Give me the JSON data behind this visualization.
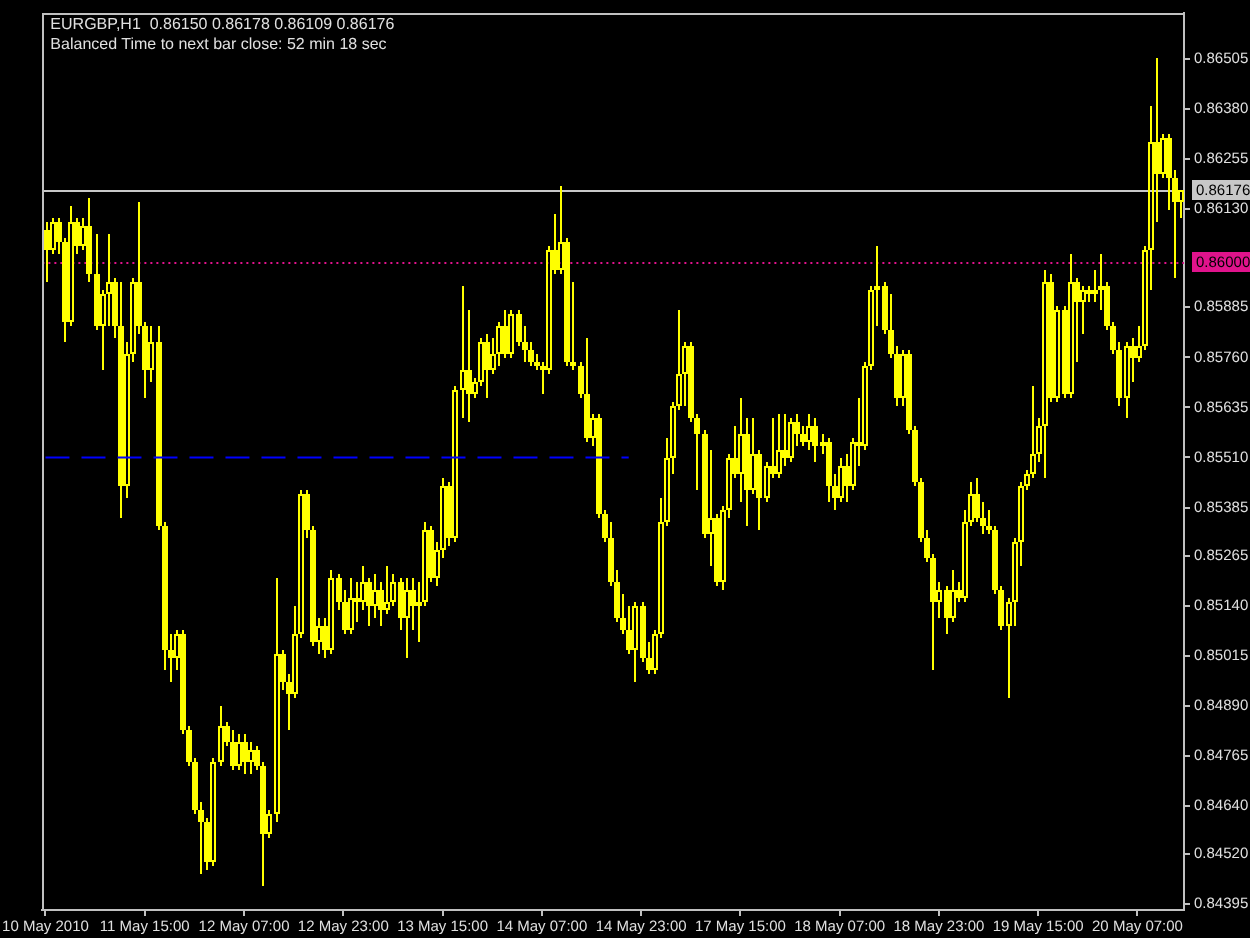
{
  "chart_data": {
    "type": "candlestick",
    "title": "EURGBP,H1  0.86150 0.86178 0.86109 0.86176",
    "subtitle": "Balanced Time to next bar close: 52 min 18 sec",
    "color": "#ffff00",
    "categories": [
      "10 May 2010",
      null,
      null,
      null,
      null,
      null,
      null,
      null,
      null,
      null,
      null,
      null,
      null,
      null,
      null,
      null,
      "11 May 15:00",
      null,
      null,
      null,
      null,
      null,
      null,
      null,
      null,
      null,
      null,
      null,
      null,
      null,
      null,
      null,
      "12 May 07:00",
      null,
      null,
      null,
      null,
      null,
      null,
      null,
      null,
      null,
      null,
      null,
      null,
      null,
      null,
      null,
      "12 May 23:00",
      null,
      null,
      null,
      null,
      null,
      null,
      null,
      null,
      null,
      null,
      null,
      null,
      null,
      null,
      null,
      "13 May 15:00",
      null,
      null,
      null,
      null,
      null,
      null,
      null,
      null,
      null,
      null,
      null,
      null,
      null,
      null,
      null,
      "14 May 07:00",
      null,
      null,
      null,
      null,
      null,
      null,
      null,
      null,
      null,
      null,
      null,
      null,
      null,
      null,
      null,
      "14 May 23:00",
      null,
      null,
      null,
      null,
      null,
      null,
      null,
      null,
      null,
      null,
      null,
      null,
      null,
      null,
      null,
      "17 May 15:00",
      null,
      null,
      null,
      null,
      null,
      null,
      null,
      null,
      null,
      null,
      null,
      null,
      null,
      null,
      null,
      "18 May 07:00",
      null,
      null,
      null,
      null,
      null,
      null,
      null,
      null,
      null,
      null,
      null,
      null,
      null,
      null,
      null,
      "18 May 23:00",
      null,
      null,
      null,
      null,
      null,
      null,
      null,
      null,
      null,
      null,
      null,
      null,
      null,
      null,
      null,
      "19 May 15:00",
      null,
      null,
      null,
      null,
      null,
      null,
      null,
      null,
      null,
      null,
      null,
      null,
      null,
      null,
      null,
      "20 May 07:00",
      null,
      null,
      null,
      null,
      null,
      null,
      null
    ],
    "ohlc": [
      [
        0.8608,
        0.861,
        0.8595,
        0.8603
      ],
      [
        0.8603,
        0.8611,
        0.8602,
        0.861
      ],
      [
        0.861,
        0.8611,
        0.8602,
        0.8605
      ],
      [
        0.8605,
        0.8606,
        0.858,
        0.8585
      ],
      [
        0.8585,
        0.8614,
        0.8584,
        0.861
      ],
      [
        0.861,
        0.8611,
        0.8602,
        0.8604
      ],
      [
        0.8604,
        0.8611,
        0.8603,
        0.8609
      ],
      [
        0.8609,
        0.8616,
        0.8595,
        0.8597
      ],
      [
        0.8597,
        0.8607,
        0.8583,
        0.8584
      ],
      [
        0.8584,
        0.8593,
        0.8573,
        0.8592
      ],
      [
        0.8592,
        0.8607,
        0.8584,
        0.8595
      ],
      [
        0.8595,
        0.8596,
        0.8581,
        0.8584
      ],
      [
        0.8584,
        0.8595,
        0.8536,
        0.8544
      ],
      [
        0.8544,
        0.858,
        0.8541,
        0.8577
      ],
      [
        0.8577,
        0.8596,
        0.8575,
        0.8595
      ],
      [
        0.8595,
        0.8615,
        0.8582,
        0.8584
      ],
      [
        0.8584,
        0.8585,
        0.8566,
        0.8573
      ],
      [
        0.8573,
        0.8584,
        0.857,
        0.858
      ],
      [
        0.858,
        0.8584,
        0.8533,
        0.8534
      ],
      [
        0.8534,
        0.8535,
        0.8498,
        0.8503
      ],
      [
        0.8503,
        0.8507,
        0.8495,
        0.8501
      ],
      [
        0.8501,
        0.8508,
        0.8498,
        0.8507
      ],
      [
        0.8507,
        0.8508,
        0.8482,
        0.8483
      ],
      [
        0.8483,
        0.8484,
        0.8474,
        0.8475
      ],
      [
        0.8475,
        0.8476,
        0.8462,
        0.8463
      ],
      [
        0.8463,
        0.8465,
        0.8447,
        0.846
      ],
      [
        0.846,
        0.8461,
        0.8448,
        0.845
      ],
      [
        0.845,
        0.8476,
        0.8449,
        0.8475
      ],
      [
        0.8475,
        0.8489,
        0.8474,
        0.8484
      ],
      [
        0.8484,
        0.8485,
        0.8479,
        0.848
      ],
      [
        0.848,
        0.8483,
        0.8473,
        0.8474
      ],
      [
        0.8474,
        0.8482,
        0.8473,
        0.848
      ],
      [
        0.848,
        0.8482,
        0.8472,
        0.8475
      ],
      [
        0.8475,
        0.848,
        0.8472,
        0.8478
      ],
      [
        0.8478,
        0.8479,
        0.8473,
        0.8474
      ],
      [
        0.8474,
        0.8475,
        0.8444,
        0.8457
      ],
      [
        0.8457,
        0.8463,
        0.8456,
        0.8462
      ],
      [
        0.8462,
        0.8521,
        0.846,
        0.8502
      ],
      [
        0.8502,
        0.8503,
        0.8493,
        0.8495
      ],
      [
        0.8495,
        0.8497,
        0.8483,
        0.8492
      ],
      [
        0.8492,
        0.8514,
        0.8491,
        0.8507
      ],
      [
        0.8507,
        0.8543,
        0.8506,
        0.8542
      ],
      [
        0.8542,
        0.8543,
        0.8531,
        0.8533
      ],
      [
        0.8533,
        0.8534,
        0.8504,
        0.8505
      ],
      [
        0.8505,
        0.8511,
        0.8502,
        0.8509
      ],
      [
        0.8509,
        0.8511,
        0.8501,
        0.8503
      ],
      [
        0.8503,
        0.8523,
        0.8502,
        0.8521
      ],
      [
        0.8521,
        0.8522,
        0.8513,
        0.8515
      ],
      [
        0.8515,
        0.8518,
        0.8507,
        0.8508
      ],
      [
        0.8508,
        0.8521,
        0.8507,
        0.8516
      ],
      [
        0.8516,
        0.852,
        0.851,
        0.8515
      ],
      [
        0.8515,
        0.8524,
        0.8513,
        0.852
      ],
      [
        0.852,
        0.8521,
        0.8509,
        0.8514
      ],
      [
        0.8514,
        0.8522,
        0.8511,
        0.8518
      ],
      [
        0.8518,
        0.852,
        0.8509,
        0.8513
      ],
      [
        0.8513,
        0.8524,
        0.8512,
        0.8515
      ],
      [
        0.8515,
        0.8522,
        0.8514,
        0.852
      ],
      [
        0.852,
        0.8521,
        0.8508,
        0.8511
      ],
      [
        0.8511,
        0.8521,
        0.8501,
        0.8518
      ],
      [
        0.8518,
        0.8521,
        0.8508,
        0.8514
      ],
      [
        0.8514,
        0.852,
        0.8505,
        0.8515
      ],
      [
        0.8515,
        0.8535,
        0.8514,
        0.8533
      ],
      [
        0.8533,
        0.8534,
        0.852,
        0.8521
      ],
      [
        0.8521,
        0.853,
        0.8519,
        0.8528
      ],
      [
        0.8528,
        0.8546,
        0.8526,
        0.8544
      ],
      [
        0.8544,
        0.8545,
        0.8529,
        0.8531
      ],
      [
        0.8531,
        0.8569,
        0.853,
        0.8568
      ],
      [
        0.8568,
        0.8594,
        0.8561,
        0.8573
      ],
      [
        0.8573,
        0.8588,
        0.856,
        0.8567
      ],
      [
        0.8567,
        0.8571,
        0.8566,
        0.857
      ],
      [
        0.857,
        0.8581,
        0.8569,
        0.858
      ],
      [
        0.858,
        0.8582,
        0.8566,
        0.8573
      ],
      [
        0.8573,
        0.8581,
        0.8572,
        0.8577
      ],
      [
        0.8577,
        0.8585,
        0.8574,
        0.8584
      ],
      [
        0.8584,
        0.8588,
        0.8576,
        0.8577
      ],
      [
        0.8577,
        0.8588,
        0.8576,
        0.8587
      ],
      [
        0.8587,
        0.8588,
        0.8579,
        0.858
      ],
      [
        0.858,
        0.8584,
        0.8575,
        0.8578
      ],
      [
        0.8578,
        0.858,
        0.8574,
        0.8575
      ],
      [
        0.8575,
        0.8577,
        0.8573,
        0.8574
      ],
      [
        0.8574,
        0.8575,
        0.8567,
        0.8573
      ],
      [
        0.8573,
        0.8604,
        0.8572,
        0.8603
      ],
      [
        0.8603,
        0.8612,
        0.8597,
        0.8598
      ],
      [
        0.8598,
        0.8619,
        0.8597,
        0.8605
      ],
      [
        0.8605,
        0.8606,
        0.8574,
        0.8575
      ],
      [
        0.8575,
        0.8595,
        0.8573,
        0.8574
      ],
      [
        0.8574,
        0.8575,
        0.8566,
        0.8567
      ],
      [
        0.8567,
        0.8581,
        0.8555,
        0.8556
      ],
      [
        0.8556,
        0.8562,
        0.8554,
        0.8561
      ],
      [
        0.8561,
        0.8562,
        0.8536,
        0.8537
      ],
      [
        0.8537,
        0.8538,
        0.853,
        0.8531
      ],
      [
        0.8531,
        0.8535,
        0.8519,
        0.852
      ],
      [
        0.852,
        0.8523,
        0.851,
        0.8511
      ],
      [
        0.8511,
        0.8517,
        0.8507,
        0.8508
      ],
      [
        0.8508,
        0.8514,
        0.8502,
        0.8503
      ],
      [
        0.8503,
        0.8515,
        0.8495,
        0.8514
      ],
      [
        0.8514,
        0.8515,
        0.85,
        0.8501
      ],
      [
        0.8501,
        0.8505,
        0.8497,
        0.8498
      ],
      [
        0.8498,
        0.8508,
        0.8497,
        0.8507
      ],
      [
        0.8507,
        0.8541,
        0.8506,
        0.8535
      ],
      [
        0.8535,
        0.8556,
        0.8534,
        0.8551
      ],
      [
        0.8551,
        0.8565,
        0.8547,
        0.8564
      ],
      [
        0.8564,
        0.8588,
        0.8563,
        0.8572
      ],
      [
        0.8572,
        0.858,
        0.8564,
        0.8579
      ],
      [
        0.8579,
        0.858,
        0.856,
        0.8561
      ],
      [
        0.8561,
        0.8562,
        0.8543,
        0.8557
      ],
      [
        0.8557,
        0.8558,
        0.8531,
        0.8532
      ],
      [
        0.8532,
        0.8553,
        0.8524,
        0.8536
      ],
      [
        0.8536,
        0.8537,
        0.8519,
        0.852
      ],
      [
        0.852,
        0.8539,
        0.8518,
        0.8538
      ],
      [
        0.8538,
        0.8552,
        0.8536,
        0.8551
      ],
      [
        0.8551,
        0.8559,
        0.8546,
        0.8547
      ],
      [
        0.8547,
        0.8566,
        0.854,
        0.8557
      ],
      [
        0.8557,
        0.8561,
        0.8534,
        0.8543
      ],
      [
        0.8543,
        0.8561,
        0.8542,
        0.8552
      ],
      [
        0.8552,
        0.8553,
        0.8533,
        0.8541
      ],
      [
        0.8541,
        0.855,
        0.854,
        0.8549
      ],
      [
        0.8549,
        0.8561,
        0.8546,
        0.8547
      ],
      [
        0.8547,
        0.8562,
        0.8546,
        0.8553
      ],
      [
        0.8553,
        0.8562,
        0.8549,
        0.8551
      ],
      [
        0.8551,
        0.8561,
        0.855,
        0.856
      ],
      [
        0.856,
        0.8562,
        0.8554,
        0.8557
      ],
      [
        0.8557,
        0.8559,
        0.8554,
        0.8555
      ],
      [
        0.8555,
        0.8562,
        0.8553,
        0.8559
      ],
      [
        0.8559,
        0.8561,
        0.855,
        0.8554
      ],
      [
        0.8554,
        0.8557,
        0.8552,
        0.8555
      ],
      [
        0.8555,
        0.8556,
        0.854,
        0.8544
      ],
      [
        0.8544,
        0.8547,
        0.8538,
        0.8541
      ],
      [
        0.8541,
        0.8551,
        0.854,
        0.8549
      ],
      [
        0.8549,
        0.8552,
        0.854,
        0.8544
      ],
      [
        0.8544,
        0.8556,
        0.8543,
        0.8555
      ],
      [
        0.8555,
        0.8566,
        0.8549,
        0.8554
      ],
      [
        0.8554,
        0.8575,
        0.8553,
        0.8574
      ],
      [
        0.8574,
        0.8594,
        0.8573,
        0.8593
      ],
      [
        0.8593,
        0.8604,
        0.8584,
        0.8594
      ],
      [
        0.8594,
        0.8595,
        0.8582,
        0.8583
      ],
      [
        0.8583,
        0.8592,
        0.8576,
        0.8577
      ],
      [
        0.8577,
        0.8579,
        0.8564,
        0.8566
      ],
      [
        0.8566,
        0.8578,
        0.8564,
        0.8577
      ],
      [
        0.8577,
        0.8578,
        0.8557,
        0.8558
      ],
      [
        0.8558,
        0.8559,
        0.8544,
        0.8545
      ],
      [
        0.8545,
        0.8546,
        0.853,
        0.8531
      ],
      [
        0.8531,
        0.8533,
        0.8525,
        0.8526
      ],
      [
        0.8526,
        0.8527,
        0.8498,
        0.8515
      ],
      [
        0.8515,
        0.852,
        0.8511,
        0.8518
      ],
      [
        0.8518,
        0.8519,
        0.8507,
        0.8511
      ],
      [
        0.8511,
        0.8523,
        0.851,
        0.8518
      ],
      [
        0.8518,
        0.852,
        0.8515,
        0.8516
      ],
      [
        0.8516,
        0.8538,
        0.8515,
        0.8535
      ],
      [
        0.8535,
        0.8545,
        0.8534,
        0.8542
      ],
      [
        0.8542,
        0.8546,
        0.8535,
        0.8536
      ],
      [
        0.8536,
        0.854,
        0.8532,
        0.8534
      ],
      [
        0.8534,
        0.8538,
        0.8532,
        0.8533
      ],
      [
        0.8533,
        0.8534,
        0.8517,
        0.8518
      ],
      [
        0.8518,
        0.8519,
        0.8508,
        0.8509
      ],
      [
        0.8509,
        0.8516,
        0.8491,
        0.8515
      ],
      [
        0.8515,
        0.8531,
        0.8509,
        0.853
      ],
      [
        0.853,
        0.8545,
        0.8524,
        0.8544
      ],
      [
        0.8544,
        0.8548,
        0.8543,
        0.8547
      ],
      [
        0.8547,
        0.8569,
        0.8546,
        0.8552
      ],
      [
        0.8552,
        0.8561,
        0.855,
        0.8559
      ],
      [
        0.8559,
        0.8598,
        0.8546,
        0.8595
      ],
      [
        0.8595,
        0.8597,
        0.8565,
        0.8566
      ],
      [
        0.8566,
        0.8589,
        0.8565,
        0.8588
      ],
      [
        0.8588,
        0.8589,
        0.8566,
        0.8567
      ],
      [
        0.8567,
        0.8602,
        0.8566,
        0.8595
      ],
      [
        0.8595,
        0.8596,
        0.8575,
        0.859
      ],
      [
        0.859,
        0.8594,
        0.8582,
        0.8593
      ],
      [
        0.8593,
        0.8594,
        0.859,
        0.8592
      ],
      [
        0.8592,
        0.8598,
        0.859,
        0.8593
      ],
      [
        0.8593,
        0.8602,
        0.8588,
        0.8594
      ],
      [
        0.8594,
        0.8595,
        0.8583,
        0.8584
      ],
      [
        0.8584,
        0.8585,
        0.8577,
        0.8578
      ],
      [
        0.8578,
        0.858,
        0.8564,
        0.8566
      ],
      [
        0.8566,
        0.858,
        0.8561,
        0.8579
      ],
      [
        0.8579,
        0.8581,
        0.857,
        0.8576
      ],
      [
        0.8576,
        0.8584,
        0.8575,
        0.8579
      ],
      [
        0.8579,
        0.8604,
        0.8578,
        0.8603
      ],
      [
        0.8603,
        0.8639,
        0.8593,
        0.863
      ],
      [
        0.863,
        0.8651,
        0.861,
        0.8622
      ],
      [
        0.8622,
        0.8632,
        0.8621,
        0.8631
      ],
      [
        0.8631,
        0.8632,
        0.8613,
        0.8621
      ],
      [
        0.8621,
        0.8623,
        0.8596,
        0.8615
      ],
      [
        0.8615,
        0.86178,
        0.86109,
        0.86176
      ]
    ],
    "series": [
      {
        "type": "line",
        "color": "#0000ff",
        "line_style": "dashed",
        "values": [
          0.8551,
          0.8551,
          0.8551,
          0.8551,
          0.8551,
          0.8551,
          0.8551,
          0.8551,
          0.8551,
          0.8551,
          0.8551,
          0.8551,
          0.8551,
          0.8551,
          0.8551,
          0.8551,
          0.8551,
          0.8551,
          0.8551,
          0.8551,
          0.8551,
          0.8551,
          0.8551,
          0.8551,
          0.8551,
          0.8551,
          0.8551,
          0.8551,
          0.8551,
          0.8551,
          0.8551,
          0.8551,
          0.8551,
          0.8551,
          0.8551,
          0.8551,
          0.8551,
          0.8551,
          0.8551,
          0.8551,
          0.8551,
          0.8551,
          0.8551,
          0.8551,
          0.8551,
          0.8551,
          0.8551,
          0.8551,
          0.8551,
          0.8551,
          0.8551,
          0.8551,
          0.8551,
          0.8551,
          0.8551,
          0.8551,
          0.8551,
          0.8551,
          0.8551,
          0.8551,
          0.8551,
          0.8551,
          0.8551,
          0.8551,
          0.8551,
          0.8551,
          0.8551,
          0.8551,
          0.8551,
          0.8551,
          0.8551,
          0.8551,
          0.8551,
          0.8551,
          0.8551,
          0.8551,
          0.8551,
          0.8551,
          0.8551,
          0.8551,
          0.8551,
          0.8551,
          0.8551,
          0.8551,
          0.8551,
          0.8551,
          0.8551,
          0.8551,
          0.8551,
          0.8551,
          0.8551,
          0.8551,
          0.8551,
          0.8551,
          0.8551,
          null,
          null,
          null,
          null,
          null,
          null,
          null,
          null,
          null,
          null,
          null,
          null,
          null,
          null,
          null,
          null,
          null,
          null,
          null,
          null,
          null,
          null,
          null,
          null,
          null,
          null,
          null,
          null,
          null,
          null,
          null,
          null,
          null,
          null,
          null,
          null,
          null,
          null,
          null,
          null,
          null,
          null,
          null,
          null,
          null,
          null,
          null,
          null,
          null,
          null,
          null,
          null,
          null,
          null,
          null,
          null,
          null,
          null,
          null,
          null,
          null,
          null,
          null,
          null,
          null,
          null,
          null,
          null,
          null,
          null,
          null,
          null,
          null,
          null,
          null,
          null,
          null,
          null,
          null,
          null,
          null,
          null,
          null,
          null,
          null,
          null,
          null,
          null,
          null
        ]
      }
    ],
    "ylim": [
      0.8438,
      0.8662
    ],
    "yticks": [
      0.86505,
      {
        "value": 0.8638,
        "label": "0.86380"
      },
      0.86255,
      {
        "value": 0.8613,
        "label": "0.86130"
      },
      0.85885,
      {
        "value": 0.8576,
        "label": "0.85760"
      },
      0.85635,
      {
        "value": 0.8551,
        "label": "0.85510"
      },
      0.85385,
      0.85265,
      {
        "value": 0.8514,
        "label": "0.85140"
      },
      0.85015,
      {
        "value": 0.8489,
        "label": "0.84890"
      },
      0.84765,
      {
        "value": 0.8464,
        "label": "0.84640"
      },
      {
        "value": 0.8452,
        "label": "0.84520"
      },
      0.84395
    ],
    "ref_lines": [
      {
        "axis": "y",
        "value": 0.86176,
        "label": "0.86176",
        "color": "#c8c8c8"
      },
      {
        "axis": "y",
        "value": 0.86,
        "label": "0.86000",
        "color": "#e0138c",
        "line_style": "dotted"
      }
    ]
  }
}
